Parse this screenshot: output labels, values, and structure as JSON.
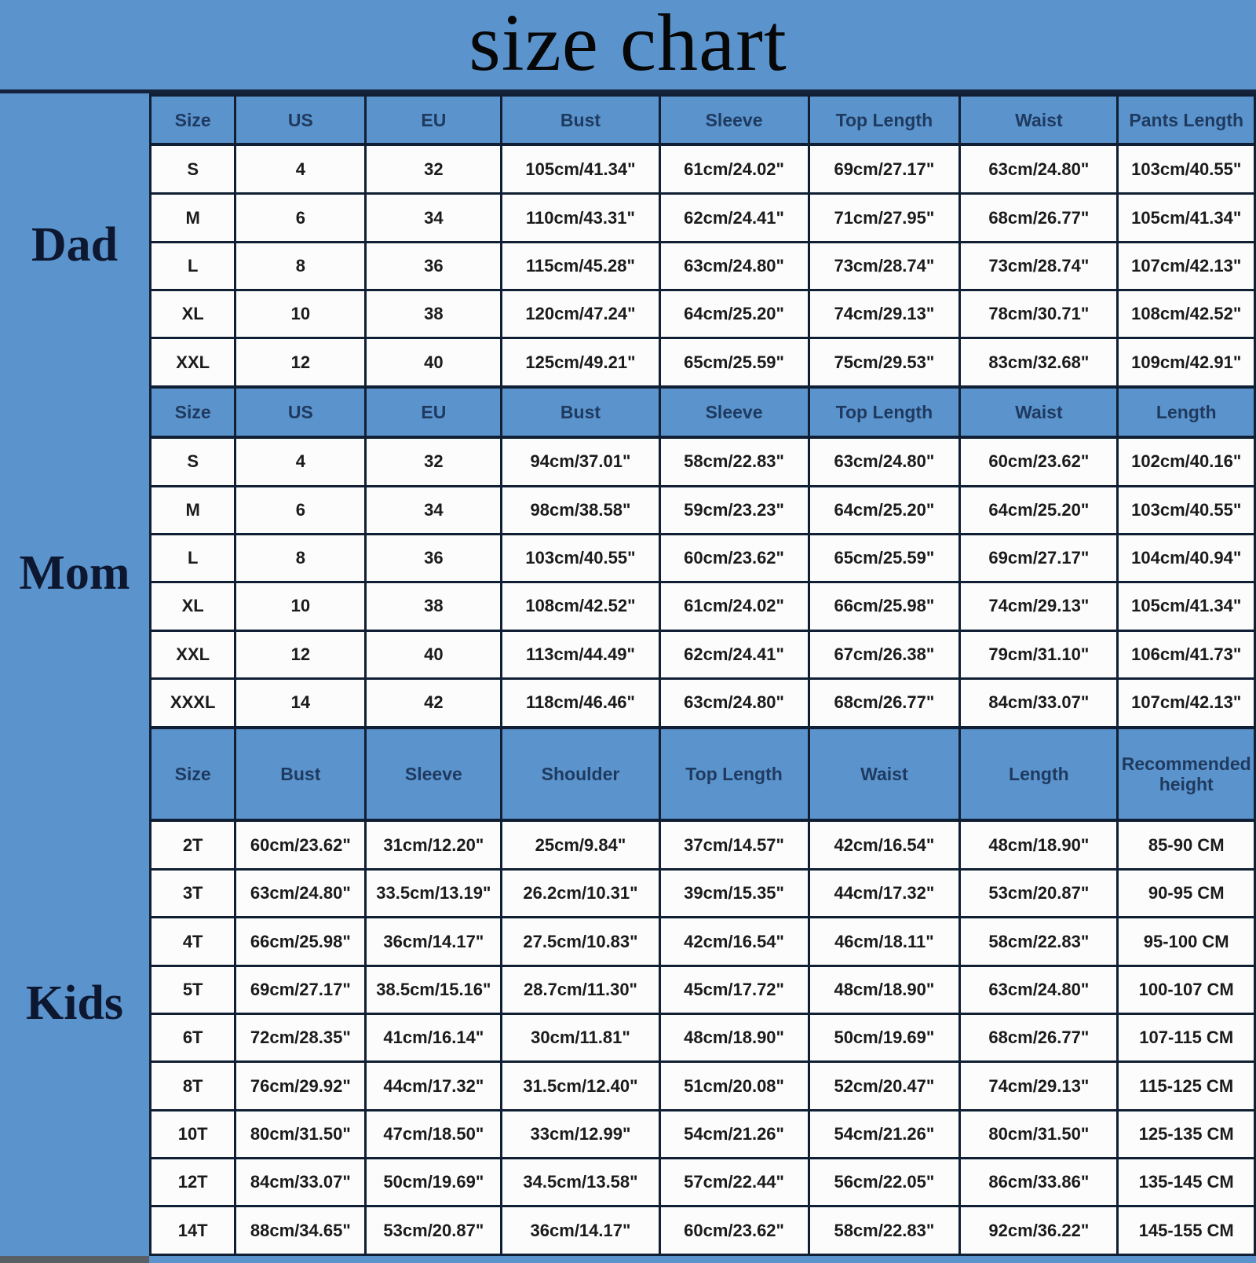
{
  "title": "size chart",
  "colors": {
    "background": "#5B93CD",
    "header_cell": "#5B93CD",
    "header_text": "#1F3A5F",
    "cell_background": "#FCFCFC",
    "cell_text": "#1B1B1B",
    "border": "#101F33",
    "title_text": "#070707"
  },
  "chart_data": {
    "type": "table",
    "title": "size chart",
    "sections": [
      {
        "label": "Dad",
        "headers": [
          "Size",
          "US",
          "EU",
          "Bust",
          "Sleeve",
          "Top Length",
          "Waist",
          "Pants Length"
        ],
        "rows": [
          [
            "S",
            "4",
            "32",
            "105cm/41.34\"",
            "61cm/24.02\"",
            "69cm/27.17\"",
            "63cm/24.80\"",
            "103cm/40.55\""
          ],
          [
            "M",
            "6",
            "34",
            "110cm/43.31\"",
            "62cm/24.41\"",
            "71cm/27.95\"",
            "68cm/26.77\"",
            "105cm/41.34\""
          ],
          [
            "L",
            "8",
            "36",
            "115cm/45.28\"",
            "63cm/24.80\"",
            "73cm/28.74\"",
            "73cm/28.74\"",
            "107cm/42.13\""
          ],
          [
            "XL",
            "10",
            "38",
            "120cm/47.24\"",
            "64cm/25.20\"",
            "74cm/29.13\"",
            "78cm/30.71\"",
            "108cm/42.52\""
          ],
          [
            "XXL",
            "12",
            "40",
            "125cm/49.21\"",
            "65cm/25.59\"",
            "75cm/29.53\"",
            "83cm/32.68\"",
            "109cm/42.91\""
          ]
        ]
      },
      {
        "label": "Mom",
        "headers": [
          "Size",
          "US",
          "EU",
          "Bust",
          "Sleeve",
          "Top Length",
          "Waist",
          "Length"
        ],
        "rows": [
          [
            "S",
            "4",
            "32",
            "94cm/37.01\"",
            "58cm/22.83\"",
            "63cm/24.80\"",
            "60cm/23.62\"",
            "102cm/40.16\""
          ],
          [
            "M",
            "6",
            "34",
            "98cm/38.58\"",
            "59cm/23.23\"",
            "64cm/25.20\"",
            "64cm/25.20\"",
            "103cm/40.55\""
          ],
          [
            "L",
            "8",
            "36",
            "103cm/40.55\"",
            "60cm/23.62\"",
            "65cm/25.59\"",
            "69cm/27.17\"",
            "104cm/40.94\""
          ],
          [
            "XL",
            "10",
            "38",
            "108cm/42.52\"",
            "61cm/24.02\"",
            "66cm/25.98\"",
            "74cm/29.13\"",
            "105cm/41.34\""
          ],
          [
            "XXL",
            "12",
            "40",
            "113cm/44.49\"",
            "62cm/24.41\"",
            "67cm/26.38\"",
            "79cm/31.10\"",
            "106cm/41.73\""
          ],
          [
            "XXXL",
            "14",
            "42",
            "118cm/46.46\"",
            "63cm/24.80\"",
            "68cm/26.77\"",
            "84cm/33.07\"",
            "107cm/42.13\""
          ]
        ]
      },
      {
        "label": "Kids",
        "headers": [
          "Size",
          "Bust",
          "Sleeve",
          "Shoulder",
          "Top Length",
          "Waist",
          "Length",
          "Recommended height"
        ],
        "rows": [
          [
            "2T",
            "60cm/23.62\"",
            "31cm/12.20\"",
            "25cm/9.84\"",
            "37cm/14.57\"",
            "42cm/16.54\"",
            "48cm/18.90\"",
            "85-90 CM"
          ],
          [
            "3T",
            "63cm/24.80\"",
            "33.5cm/13.19\"",
            "26.2cm/10.31\"",
            "39cm/15.35\"",
            "44cm/17.32\"",
            "53cm/20.87\"",
            "90-95 CM"
          ],
          [
            "4T",
            "66cm/25.98\"",
            "36cm/14.17\"",
            "27.5cm/10.83\"",
            "42cm/16.54\"",
            "46cm/18.11\"",
            "58cm/22.83\"",
            "95-100 CM"
          ],
          [
            "5T",
            "69cm/27.17\"",
            "38.5cm/15.16\"",
            "28.7cm/11.30\"",
            "45cm/17.72\"",
            "48cm/18.90\"",
            "63cm/24.80\"",
            "100-107 CM"
          ],
          [
            "6T",
            "72cm/28.35\"",
            "41cm/16.14\"",
            "30cm/11.81\"",
            "48cm/18.90\"",
            "50cm/19.69\"",
            "68cm/26.77\"",
            "107-115 CM"
          ],
          [
            "8T",
            "76cm/29.92\"",
            "44cm/17.32\"",
            "31.5cm/12.40\"",
            "51cm/20.08\"",
            "52cm/20.47\"",
            "74cm/29.13\"",
            "115-125 CM"
          ],
          [
            "10T",
            "80cm/31.50\"",
            "47cm/18.50\"",
            "33cm/12.99\"",
            "54cm/21.26\"",
            "54cm/21.26\"",
            "80cm/31.50\"",
            "125-135 CM"
          ],
          [
            "12T",
            "84cm/33.07\"",
            "50cm/19.69\"",
            "34.5cm/13.58\"",
            "57cm/22.44\"",
            "56cm/22.05\"",
            "86cm/33.86\"",
            "135-145 CM"
          ],
          [
            "14T",
            "88cm/34.65\"",
            "53cm/20.87\"",
            "36cm/14.17\"",
            "60cm/23.62\"",
            "58cm/22.83\"",
            "92cm/36.22\"",
            "145-155 CM"
          ]
        ]
      }
    ],
    "column_width_percents": [
      7.7,
      11.8,
      12.3,
      14.3,
      13.5,
      13.7,
      14.3,
      12.4
    ]
  }
}
